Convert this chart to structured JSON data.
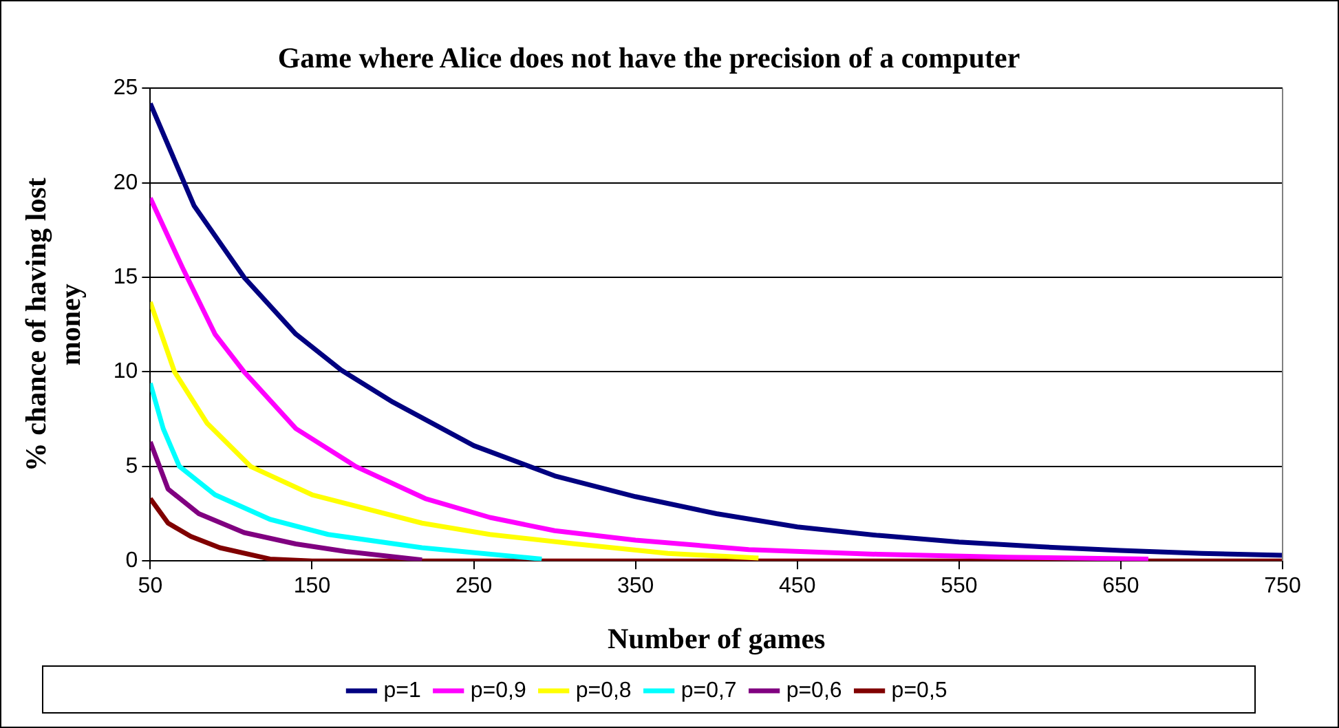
{
  "chart_data": {
    "type": "line",
    "title": "Game where Alice does not have the precision of a computer",
    "xlabel": "Number of games",
    "ylabel": "% chance of having lost money",
    "xlim": [
      50,
      750
    ],
    "xticks": [
      50,
      150,
      250,
      350,
      450,
      550,
      650,
      750
    ],
    "ylim": [
      0,
      25
    ],
    "yticks": [
      0,
      5,
      10,
      15,
      20,
      25
    ],
    "grid": "y",
    "legend": "bottom",
    "marker": "none",
    "line_style": "solid",
    "series": [
      {
        "name": "p=1",
        "color": "#000080",
        "x": [
          50,
          77,
          108,
          140,
          168,
          200,
          250,
          300,
          350,
          400,
          450,
          500,
          550,
          600,
          650,
          700,
          750
        ],
        "values": [
          24.2,
          18.8,
          15,
          12,
          10.1,
          8.4,
          6.1,
          4.5,
          3.4,
          2.5,
          1.8,
          1.35,
          1.0,
          0.75,
          0.55,
          0.4,
          0.3
        ]
      },
      {
        "name": "p=0,9",
        "color": "#ff00ff",
        "x": [
          50,
          70,
          90,
          108,
          140,
          177,
          220,
          260,
          300,
          350,
          420,
          500,
          580,
          667
        ],
        "values": [
          19.2,
          15.5,
          12,
          10,
          7,
          5,
          3.3,
          2.3,
          1.6,
          1.1,
          0.6,
          0.35,
          0.2,
          0.1
        ]
      },
      {
        "name": "p=0,8",
        "color": "#ffff00",
        "x": [
          50,
          65,
          85,
          112,
          150,
          218,
          260,
          313,
          370,
          426
        ],
        "values": [
          13.7,
          10,
          7.3,
          5,
          3.5,
          2.0,
          1.4,
          0.9,
          0.4,
          0.15
        ]
      },
      {
        "name": "p=0,7",
        "color": "#00ffff",
        "x": [
          50,
          58,
          68,
          90,
          124,
          160,
          218,
          292
        ],
        "values": [
          9.4,
          7,
          5,
          3.5,
          2.2,
          1.4,
          0.7,
          0.1
        ]
      },
      {
        "name": "p=0,6",
        "color": "#800080",
        "x": [
          50,
          61,
          80,
          108,
          140,
          171,
          218
        ],
        "values": [
          6.3,
          3.8,
          2.5,
          1.5,
          0.9,
          0.5,
          0.05
        ]
      },
      {
        "name": "p=0,5",
        "color": "#800000",
        "x": [
          50,
          61,
          75,
          93,
          124,
          150,
          750
        ],
        "values": [
          3.3,
          2.0,
          1.3,
          0.7,
          0.1,
          0,
          0
        ]
      }
    ]
  }
}
